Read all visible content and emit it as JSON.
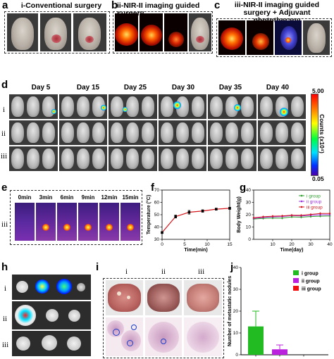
{
  "panels": {
    "a": {
      "letter": "a",
      "title": "i-Conventional surgery"
    },
    "b": {
      "letter": "b",
      "title": "ii-NIR-II imaging guided surgery"
    },
    "c": {
      "letter": "c",
      "title_line1": "iii-NIR-II imaging guided",
      "title_line2": "surgery + Adjuvant phototherapy"
    },
    "d": {
      "letter": "d",
      "days": [
        "Day 5",
        "Day 15",
        "Day 25",
        "Day 30",
        "Day 35",
        "Day 40"
      ],
      "rows": [
        "i",
        "ii",
        "iii"
      ],
      "colorbar": {
        "max": "5.00",
        "min": "0.05",
        "label": "Counts (x10⁴)"
      }
    },
    "e": {
      "letter": "e",
      "row": "iii",
      "times": [
        "0min",
        "3min",
        "6min",
        "9min",
        "12min",
        "15min"
      ]
    },
    "f": {
      "letter": "f"
    },
    "g": {
      "letter": "g"
    },
    "h": {
      "letter": "h",
      "rows": [
        "i",
        "ii",
        "iii"
      ]
    },
    "i": {
      "letter": "i",
      "cols": [
        "i",
        "ii",
        "iii"
      ]
    },
    "j": {
      "letter": "j"
    }
  },
  "chart_data": [
    {
      "id": "f",
      "type": "line",
      "xlabel": "Time(min)",
      "ylabel": "Temperature (°C)",
      "xlim": [
        0,
        15
      ],
      "ylim": [
        30,
        70
      ],
      "xticks": [
        0,
        5,
        10,
        15
      ],
      "yticks": [
        30,
        40,
        50,
        60,
        70
      ],
      "series": [
        {
          "x": [
            0,
            3,
            6,
            9,
            12,
            15
          ],
          "y": [
            35.5,
            48.5,
            52.0,
            53.0,
            54.5,
            55.2
          ],
          "err": [
            0.5,
            1.2,
            1.5,
            1.0,
            0.8,
            0.8
          ],
          "color": "#d4171c"
        }
      ]
    },
    {
      "id": "g",
      "type": "line",
      "xlabel": "Time(day)",
      "ylabel": "Body Weight(g)",
      "xlim": [
        0,
        40
      ],
      "ylim": [
        0,
        40
      ],
      "xticks": [
        10,
        20,
        30,
        40
      ],
      "yticks": [
        0,
        10,
        20,
        30,
        40
      ],
      "legend_position": "top-right",
      "series": [
        {
          "name": "i group",
          "color": "#2ca02c",
          "x": [
            0,
            5,
            10,
            15,
            20,
            25,
            30,
            35,
            40
          ],
          "y": [
            16.5,
            17.0,
            17.3,
            17.2,
            18.2,
            18.0,
            18.5,
            18.8,
            19.0
          ]
        },
        {
          "name": "ii group",
          "color": "#9b30d9",
          "x": [
            0,
            5,
            10,
            15,
            20,
            25,
            30,
            35,
            40
          ],
          "y": [
            17.0,
            17.8,
            18.3,
            18.5,
            19.3,
            19.0,
            19.5,
            19.9,
            20.0
          ]
        },
        {
          "name": "iii group",
          "color": "#d4171c",
          "x": [
            0,
            5,
            10,
            15,
            20,
            25,
            30,
            35,
            40
          ],
          "y": [
            17.5,
            18.3,
            18.8,
            19.0,
            19.6,
            19.5,
            20.2,
            21.0,
            21.0
          ]
        }
      ]
    },
    {
      "id": "j",
      "type": "bar",
      "ylabel": "Number of metastatic nodules",
      "ylim": [
        0,
        40
      ],
      "yticks": [
        0,
        10,
        20,
        30,
        40
      ],
      "legend_position": "top-right",
      "categories": [
        "i group",
        "ii group",
        "iii group"
      ],
      "values": [
        13,
        2.5,
        0
      ],
      "err": [
        7,
        2,
        0
      ],
      "colors": [
        "#22bb22",
        "#bb22dd",
        "#ee1111"
      ]
    }
  ]
}
